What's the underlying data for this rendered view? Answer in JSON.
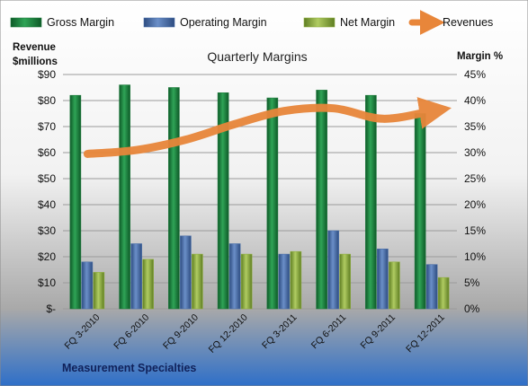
{
  "chart_data": {
    "type": "bar",
    "title": "Quarterly Margins",
    "left_axis_label": [
      "Revenue",
      "$millions"
    ],
    "right_axis_label": "Margin %",
    "footer": "Measurement Specialties",
    "categories": [
      "FQ 3-2010",
      "FQ 6-2010",
      "FQ 9-2010",
      "FQ 12-2010",
      "FQ 3-2011",
      "FQ 6-2011",
      "FQ 9-2011",
      "FQ 12-2011"
    ],
    "left_ticks": [
      "$-",
      "$10",
      "$20",
      "$30",
      "$40",
      "$50",
      "$60",
      "$70",
      "$80",
      "$90"
    ],
    "right_ticks": [
      "0%",
      "5%",
      "10%",
      "15%",
      "20%",
      "25%",
      "30%",
      "35%",
      "40%",
      "45%"
    ],
    "ylim_left": [
      0,
      90
    ],
    "ylim_right": [
      0,
      45
    ],
    "legend_position": "top",
    "grid": true,
    "series": [
      {
        "name": "Gross Margin",
        "axis": "right",
        "kind": "bar",
        "color": "#1e7a3c",
        "values": [
          41,
          43,
          42.5,
          41.5,
          40.5,
          42,
          41,
          37.5
        ]
      },
      {
        "name": "Operating Margin",
        "axis": "right",
        "kind": "bar",
        "color": "#4a6fa8",
        "values": [
          9,
          12.5,
          14,
          12.5,
          10.5,
          15,
          11.5,
          8.5
        ]
      },
      {
        "name": "Net Margin",
        "axis": "right",
        "kind": "bar",
        "color": "#8fae3e",
        "values": [
          7,
          9.5,
          10.5,
          10.5,
          11,
          10.5,
          9,
          6
        ]
      },
      {
        "name": "Revenues",
        "axis": "left",
        "kind": "line",
        "color": "#e8863a",
        "values": [
          59.5,
          61,
          65,
          71,
          76,
          77,
          73,
          76
        ]
      }
    ]
  }
}
